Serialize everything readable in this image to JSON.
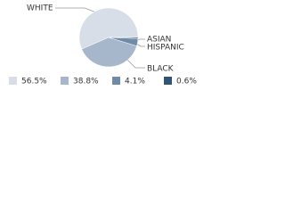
{
  "chart_data": {
    "type": "pie",
    "categories": [
      "WHITE",
      "BLACK",
      "ASIAN",
      "HISPANIC"
    ],
    "values": [
      56.5,
      38.8,
      4.1,
      0.6
    ],
    "value_labels": [
      "56.5%",
      "38.8%",
      "4.1%",
      "0.6%"
    ],
    "colors": [
      "#d7dee8",
      "#a6b7cb",
      "#6f8ba7",
      "#2f5475"
    ]
  }
}
